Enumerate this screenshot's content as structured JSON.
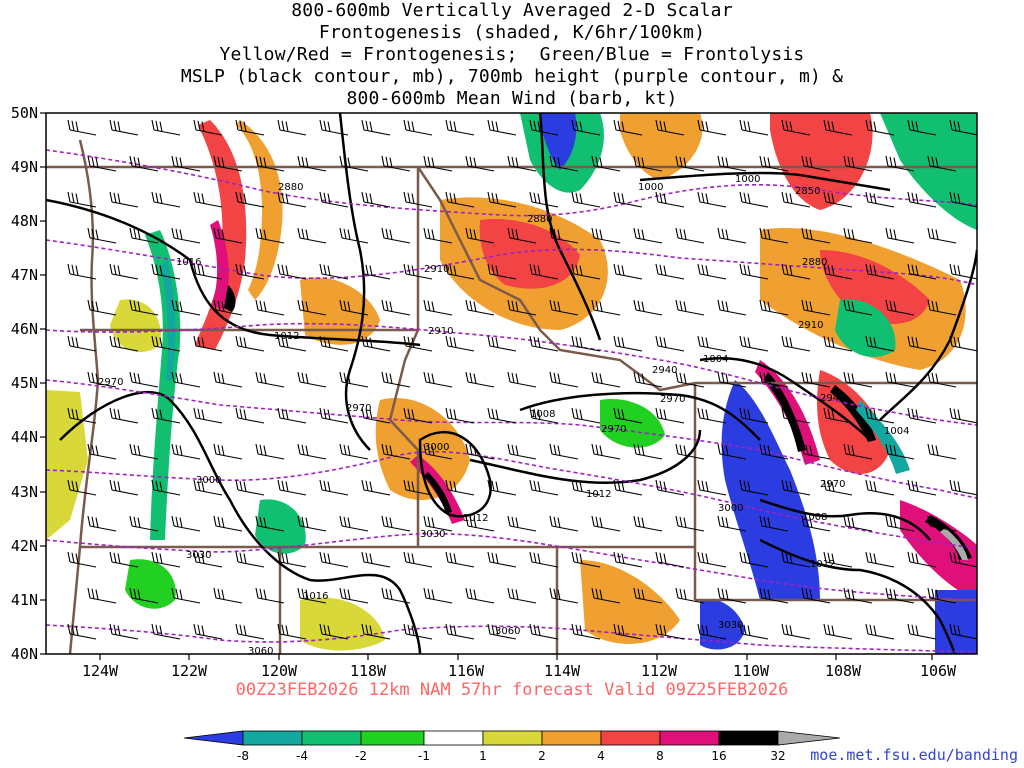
{
  "title_lines": [
    "800-600mb Vertically Averaged 2-D Scalar",
    "Frontogenesis (shaded, K/6hr/100km)",
    "Yellow/Red = Frontogenesis;  Green/Blue = Frontolysis",
    "MSLP (black contour, mb), 700mb height (purple contour, m) &",
    "800-600mb Mean Wind (barb, kt)"
  ],
  "valid_line": "00Z23FEB2026 12km NAM 57hr forecast Valid 09Z25FEB2026",
  "url": "moe.met.fsu.edu/banding",
  "colors": {
    "mslp_contour": "#000000",
    "height_contour": "#a020c8",
    "state_borders": "#7a5a4a",
    "barbs": "#000000",
    "valid_text": "#ff6666"
  },
  "lat_labels": [
    "50N",
    "49N",
    "48N",
    "47N",
    "46N",
    "45N",
    "44N",
    "43N",
    "42N",
    "41N",
    "40N"
  ],
  "lon_labels": [
    "124W",
    "122W",
    "120W",
    "118W",
    "116W",
    "114W",
    "112W",
    "110W",
    "108W",
    "106W"
  ],
  "mslp_labels": [
    "1016",
    "1012",
    "1008",
    "1004",
    "1000",
    "1000",
    "1012",
    "1012",
    "1008",
    "1004",
    "1016",
    "1012"
  ],
  "height_labels": [
    "2880",
    "2850",
    "2880",
    "2880",
    "2910",
    "2910",
    "2910",
    "2940",
    "2940",
    "2970",
    "2970",
    "2970",
    "2970",
    "3000",
    "3000",
    "3000",
    "3030",
    "3030",
    "3060",
    "3060",
    "2970",
    "3030"
  ],
  "colorbar": {
    "labels": [
      "-8",
      "-4",
      "-2",
      "-1",
      "1",
      "2",
      "4",
      "8",
      "16",
      "32"
    ],
    "colors": [
      "#2b3de0",
      "#12a8a0",
      "#10c070",
      "#22d022",
      "#ffffff",
      "#d8d838",
      "#f0a030",
      "#f24444",
      "#e0107a",
      "#000000",
      "#aaaaaa"
    ]
  }
}
